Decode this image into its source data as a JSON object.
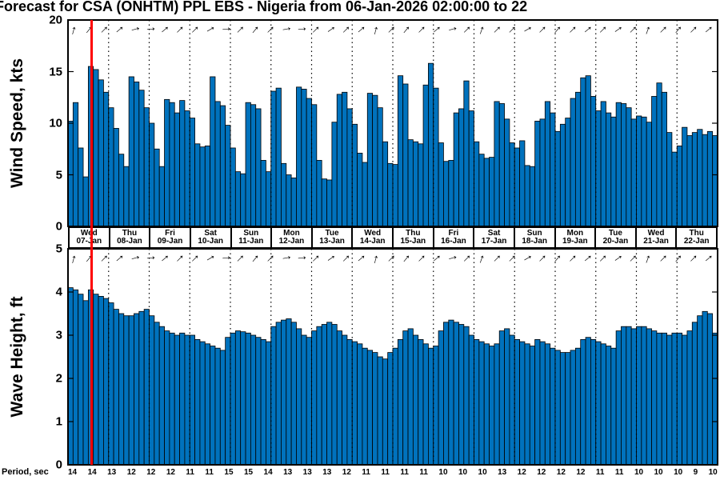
{
  "title": "Forecast for CSA (ONHTM) PPL EBS  - Nigeria from 06-Jan-2026 02:00:00 to 22",
  "colors": {
    "bar": "#0072BD",
    "bar_edge": "#000000",
    "now_line": "#FF0000",
    "grid": "#000000",
    "frame": "#000000"
  },
  "now_index": 4.7,
  "arrow_angles": [
    -75,
    -50,
    -45,
    -40,
    -15,
    -5,
    -40,
    -45,
    -45,
    -30,
    -5,
    -45,
    -50,
    -45,
    -10,
    -5,
    -45,
    -35,
    -45,
    -40,
    -75,
    -45,
    -50,
    -45,
    -40,
    -15,
    -45,
    -70,
    -45,
    -45,
    -30,
    -45,
    -50,
    -45,
    -40,
    -45,
    -35,
    -45,
    -70,
    -45,
    -50,
    -45,
    -40
  ],
  "chart_data": [
    {
      "type": "bar",
      "ylabel": "Wind Speed, kts",
      "ylim": [
        0,
        20
      ],
      "yticks": [
        0,
        5,
        10,
        15,
        20
      ],
      "grid": "dotted-vertical-day-boundaries",
      "values": [
        10.2,
        12.0,
        7.6,
        4.8,
        15.5,
        15.2,
        14.2,
        13.0,
        11.5,
        9.5,
        7.0,
        5.8,
        14.5,
        14.0,
        13.2,
        11.5,
        10.0,
        7.5,
        5.8,
        12.3,
        12.0,
        11.0,
        12.2,
        11.2,
        10.5,
        8.0,
        7.7,
        7.8,
        14.5,
        12.1,
        11.7,
        9.8,
        7.6,
        5.3,
        5.1,
        12.0,
        11.8,
        11.4,
        6.4,
        5.3,
        13.1,
        13.4,
        6.1,
        5.0,
        4.7,
        13.5,
        13.3,
        12.4,
        11.8,
        6.4,
        4.6,
        4.5,
        10.1,
        12.8,
        13.0,
        11.4,
        9.9,
        7.1,
        6.2,
        12.9,
        12.7,
        11.5,
        8.2,
        6.1,
        6.0,
        14.6,
        13.8,
        8.4,
        8.2,
        8.0,
        13.7,
        15.8,
        13.4,
        8.1,
        6.3,
        6.4,
        11.0,
        11.4,
        14.1,
        11.2,
        8.2,
        7.0,
        6.6,
        6.7,
        12.1,
        11.9,
        10.4,
        8.1,
        7.6,
        8.3,
        5.9,
        5.8,
        10.2,
        10.4,
        12.1,
        11.0,
        9.2,
        9.9,
        10.5,
        12.4,
        13.0,
        14.4,
        14.6,
        12.6,
        11.2,
        12.1,
        11.0,
        10.6,
        12.0,
        11.9,
        11.5,
        10.4,
        10.7,
        10.6,
        10.1,
        12.6,
        13.9,
        13.0,
        9.1,
        7.2,
        7.8,
        9.6,
        8.8,
        9.1,
        9.4,
        8.9,
        9.2,
        8.8
      ]
    },
    {
      "type": "bar",
      "ylabel": "Wave Height, ft",
      "ylim": [
        0,
        5
      ],
      "yticks": [
        0,
        1,
        2,
        3,
        4,
        5
      ],
      "grid": "dotted-vertical-day-boundaries",
      "values": [
        4.1,
        4.05,
        3.95,
        3.8,
        4.05,
        3.95,
        3.9,
        3.85,
        3.75,
        3.6,
        3.5,
        3.45,
        3.45,
        3.5,
        3.55,
        3.6,
        3.45,
        3.3,
        3.2,
        3.1,
        3.05,
        3.0,
        3.05,
        3.0,
        3.0,
        2.9,
        2.85,
        2.8,
        2.75,
        2.7,
        2.65,
        2.95,
        3.05,
        3.1,
        3.08,
        3.05,
        3.0,
        2.95,
        2.9,
        2.85,
        3.2,
        3.3,
        3.35,
        3.38,
        3.3,
        3.15,
        3.0,
        2.95,
        3.1,
        3.2,
        3.25,
        3.3,
        3.25,
        3.1,
        3.0,
        2.9,
        2.85,
        2.8,
        2.7,
        2.65,
        2.6,
        2.5,
        2.45,
        2.6,
        2.7,
        2.9,
        3.1,
        3.15,
        3.0,
        2.9,
        2.8,
        2.7,
        2.75,
        3.1,
        3.3,
        3.35,
        3.3,
        3.25,
        3.2,
        3.0,
        2.9,
        2.85,
        2.8,
        2.75,
        2.8,
        3.1,
        3.15,
        3.0,
        2.9,
        2.85,
        2.8,
        2.75,
        2.9,
        2.85,
        2.8,
        2.7,
        2.65,
        2.6,
        2.6,
        2.65,
        2.7,
        2.9,
        2.95,
        2.9,
        2.85,
        2.8,
        2.75,
        2.7,
        3.1,
        3.2,
        3.2,
        3.15,
        3.2,
        3.2,
        3.15,
        3.1,
        3.05,
        3.05,
        3.0,
        3.05,
        3.05,
        3.0,
        3.1,
        3.3,
        3.45,
        3.55,
        3.5,
        3.05
      ]
    }
  ],
  "days": [
    {
      "name": "Wed",
      "date": "07-Jan"
    },
    {
      "name": "Thu",
      "date": "08-Jan"
    },
    {
      "name": "Fri",
      "date": "09-Jan"
    },
    {
      "name": "Sat",
      "date": "10-Jan"
    },
    {
      "name": "Sun",
      "date": "11-Jan"
    },
    {
      "name": "Mon",
      "date": "12-Jan"
    },
    {
      "name": "Tue",
      "date": "13-Jan"
    },
    {
      "name": "Wed",
      "date": "14-Jan"
    },
    {
      "name": "Thu",
      "date": "15-Jan"
    },
    {
      "name": "Fri",
      "date": "16-Jan"
    },
    {
      "name": "Sat",
      "date": "17-Jan"
    },
    {
      "name": "Sun",
      "date": "18-Jan"
    },
    {
      "name": "Mon",
      "date": "19-Jan"
    },
    {
      "name": "Tue",
      "date": "20-Jan"
    },
    {
      "name": "Wed",
      "date": "21-Jan"
    },
    {
      "name": "Thu",
      "date": "22-Jan"
    }
  ],
  "period": {
    "label": "Period, sec",
    "values": [
      14,
      14,
      13,
      12,
      12,
      12,
      11,
      11,
      15,
      15,
      14,
      13,
      13,
      13,
      12,
      11,
      11,
      11,
      11,
      10,
      10,
      10,
      13,
      12,
      12,
      12,
      12,
      11,
      11,
      10,
      10,
      10,
      9,
      10
    ]
  }
}
